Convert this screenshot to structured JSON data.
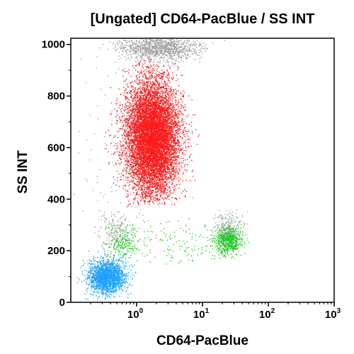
{
  "chart_data": {
    "type": "scatter",
    "title": "[Ungated] CD64-PacBlue / SS INT",
    "xlabel": "CD64-PacBlue",
    "ylabel": "SS INT",
    "x_scale": "log",
    "xlim": [
      0.1,
      1000
    ],
    "ylim": [
      0,
      1024
    ],
    "x_tick_labels": [
      {
        "value": 1,
        "base": "10",
        "exp": "0"
      },
      {
        "value": 10,
        "base": "10",
        "exp": "1"
      },
      {
        "value": 100,
        "base": "10",
        "exp": "2"
      },
      {
        "value": 1000,
        "base": "10",
        "exp": "3"
      }
    ],
    "y_ticks": [
      0,
      200,
      400,
      600,
      800,
      1000
    ],
    "y_tick_labels": [
      "0",
      "200",
      "400",
      "600",
      "800",
      "1000"
    ],
    "grid": false,
    "legend": "none",
    "populations": [
      {
        "color": "#ff1a1a",
        "count": 9000,
        "x_center": 1.7,
        "x_log_sd": 0.2,
        "y_center": 640,
        "y_sd": 110,
        "y_min": 380,
        "y_max": 940
      },
      {
        "color": "#a0a0a0",
        "count": 1100,
        "x_center": 2.2,
        "x_log_sd": 0.3,
        "y_center": 990,
        "y_sd": 25,
        "y_min": 930,
        "y_max": 1024
      },
      {
        "color": "#1ea0ff",
        "count": 1900,
        "x_center": 0.35,
        "x_log_sd": 0.14,
        "y_center": 100,
        "y_sd": 33,
        "y_min": 10,
        "y_max": 220
      },
      {
        "color": "#1ec81e",
        "count": 700,
        "x_center": 24,
        "x_log_sd": 0.1,
        "y_center": 245,
        "y_sd": 28,
        "y_min": 150,
        "y_max": 330
      },
      {
        "color": "#a8a8a8",
        "count": 180,
        "x_center": 24,
        "x_log_sd": 0.12,
        "y_center": 300,
        "y_sd": 30,
        "y_min": 220,
        "y_max": 360
      },
      {
        "color": "#1ec81e",
        "count": 220,
        "x_center": 0.6,
        "x_log_sd": 0.12,
        "y_center": 230,
        "y_sd": 35,
        "y_min": 150,
        "y_max": 320
      },
      {
        "color": "#a8a8a8",
        "count": 160,
        "x_center": 0.45,
        "x_log_sd": 0.12,
        "y_center": 280,
        "y_sd": 35,
        "y_min": 200,
        "y_max": 360
      },
      {
        "color": "#a0a0a0",
        "count": 260,
        "x_center": 0.9,
        "x_log_sd": 0.35,
        "y_center": 600,
        "y_sd": 200,
        "y_min": 250,
        "y_max": 1000
      },
      {
        "color": "#1ec81e",
        "count": 140,
        "x_center": 4,
        "x_log_sd": 0.4,
        "y_center": 230,
        "y_sd": 50,
        "y_min": 150,
        "y_max": 330
      }
    ]
  }
}
